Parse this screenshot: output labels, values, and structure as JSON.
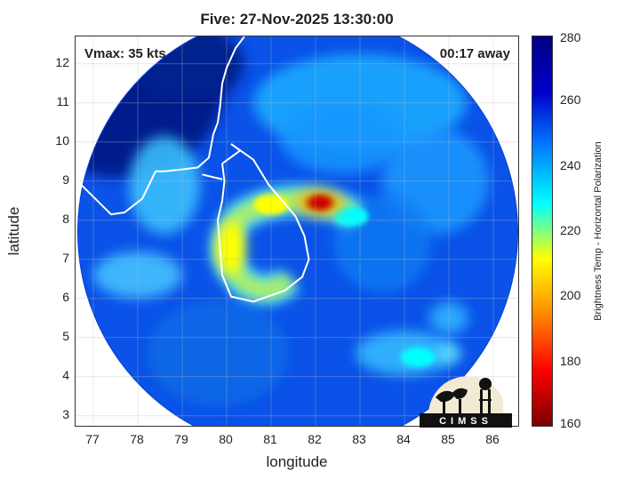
{
  "chart_data": {
    "type": "heatmap",
    "title": "Five: 27-Nov-2025 13:30:00",
    "annotations": {
      "vmax": "Vmax: 35 kts",
      "time_offset": "00:17 away"
    },
    "xlabel": "longitude",
    "ylabel": "latitude",
    "xlim": [
      76.6,
      86.6
    ],
    "ylim": [
      2.7,
      12.7
    ],
    "xticks": [
      77,
      78,
      79,
      80,
      81,
      82,
      83,
      84,
      85,
      86
    ],
    "yticks": [
      3,
      4,
      5,
      6,
      7,
      8,
      9,
      10,
      11,
      12
    ],
    "grid": true,
    "swath": {
      "center_lon": 81.6,
      "center_lat": 7.7,
      "radius_deg": 4.95
    },
    "colorbar": {
      "label": "Brightness Temp - Horizontal Polarization",
      "range": [
        160,
        280
      ],
      "ticks": [
        160,
        180,
        200,
        220,
        240,
        260,
        280
      ],
      "colormap": [
        "#7a0000",
        "#ff0000",
        "#ff8800",
        "#ffff00",
        "#00ffff",
        "#0080ff",
        "#0000cc",
        "#000080"
      ]
    },
    "features": [
      {
        "lon": 82.1,
        "lat": 8.45,
        "value": 168
      },
      {
        "lon": 80.1,
        "lat": 7.3,
        "value": 205
      },
      {
        "lon": 81.0,
        "lat": 8.4,
        "value": 218
      },
      {
        "lon": 82.8,
        "lat": 8.1,
        "value": 225
      },
      {
        "lon": 84.3,
        "lat": 4.5,
        "value": 225
      }
    ]
  },
  "logo": {
    "text": "CIMSS"
  }
}
